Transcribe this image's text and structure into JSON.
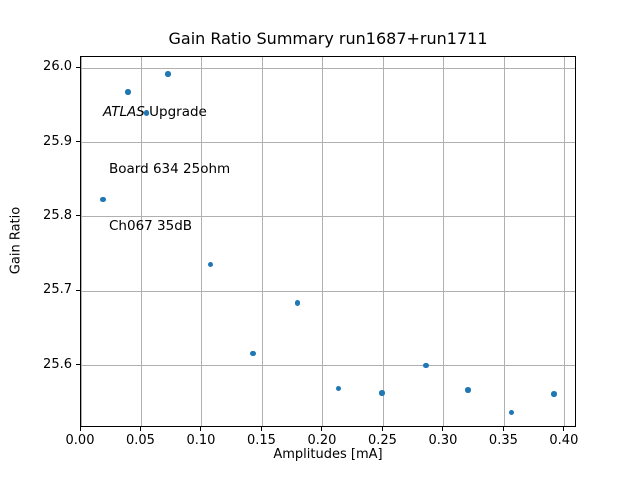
{
  "chart_data": {
    "type": "scatter",
    "title": "Gain Ratio Summary run1687+run1711",
    "xlabel": "Amplitudes [mA]",
    "ylabel": "Gain Ratio",
    "xlim": [
      0.0,
      0.41
    ],
    "ylim": [
      25.516,
      26.015
    ],
    "grid": true,
    "legend": "none",
    "marker_color": "#1f77b4",
    "grid_color": "#b0b0b0",
    "xticks": [
      0.0,
      0.05,
      0.1,
      0.15,
      0.2,
      0.25,
      0.3,
      0.35,
      0.4
    ],
    "xtick_labels": [
      "0.00",
      "0.05",
      "0.10",
      "0.15",
      "0.20",
      "0.25",
      "0.30",
      "0.35",
      "0.40"
    ],
    "yticks": [
      25.6,
      25.7,
      25.8,
      25.9,
      26.0
    ],
    "ytick_labels": [
      "25.6",
      "25.7",
      "25.8",
      "25.9",
      "26.0"
    ],
    "series": [
      {
        "name": "gain-ratio-points",
        "x": [
          0.018,
          0.039,
          0.054,
          0.072,
          0.107,
          0.142,
          0.179,
          0.213,
          0.249,
          0.285,
          0.32,
          0.356,
          0.391
        ],
        "y": [
          25.823,
          25.968,
          25.94,
          25.992,
          25.736,
          25.616,
          25.684,
          25.569,
          25.563,
          25.6,
          25.567,
          25.537,
          25.562
        ]
      }
    ],
    "annotation": {
      "line1_italic": "ATLAS",
      "line1_rest": " Upgrade",
      "line2": "Board 634 25ohm",
      "line3": "Ch067 35dB"
    }
  }
}
